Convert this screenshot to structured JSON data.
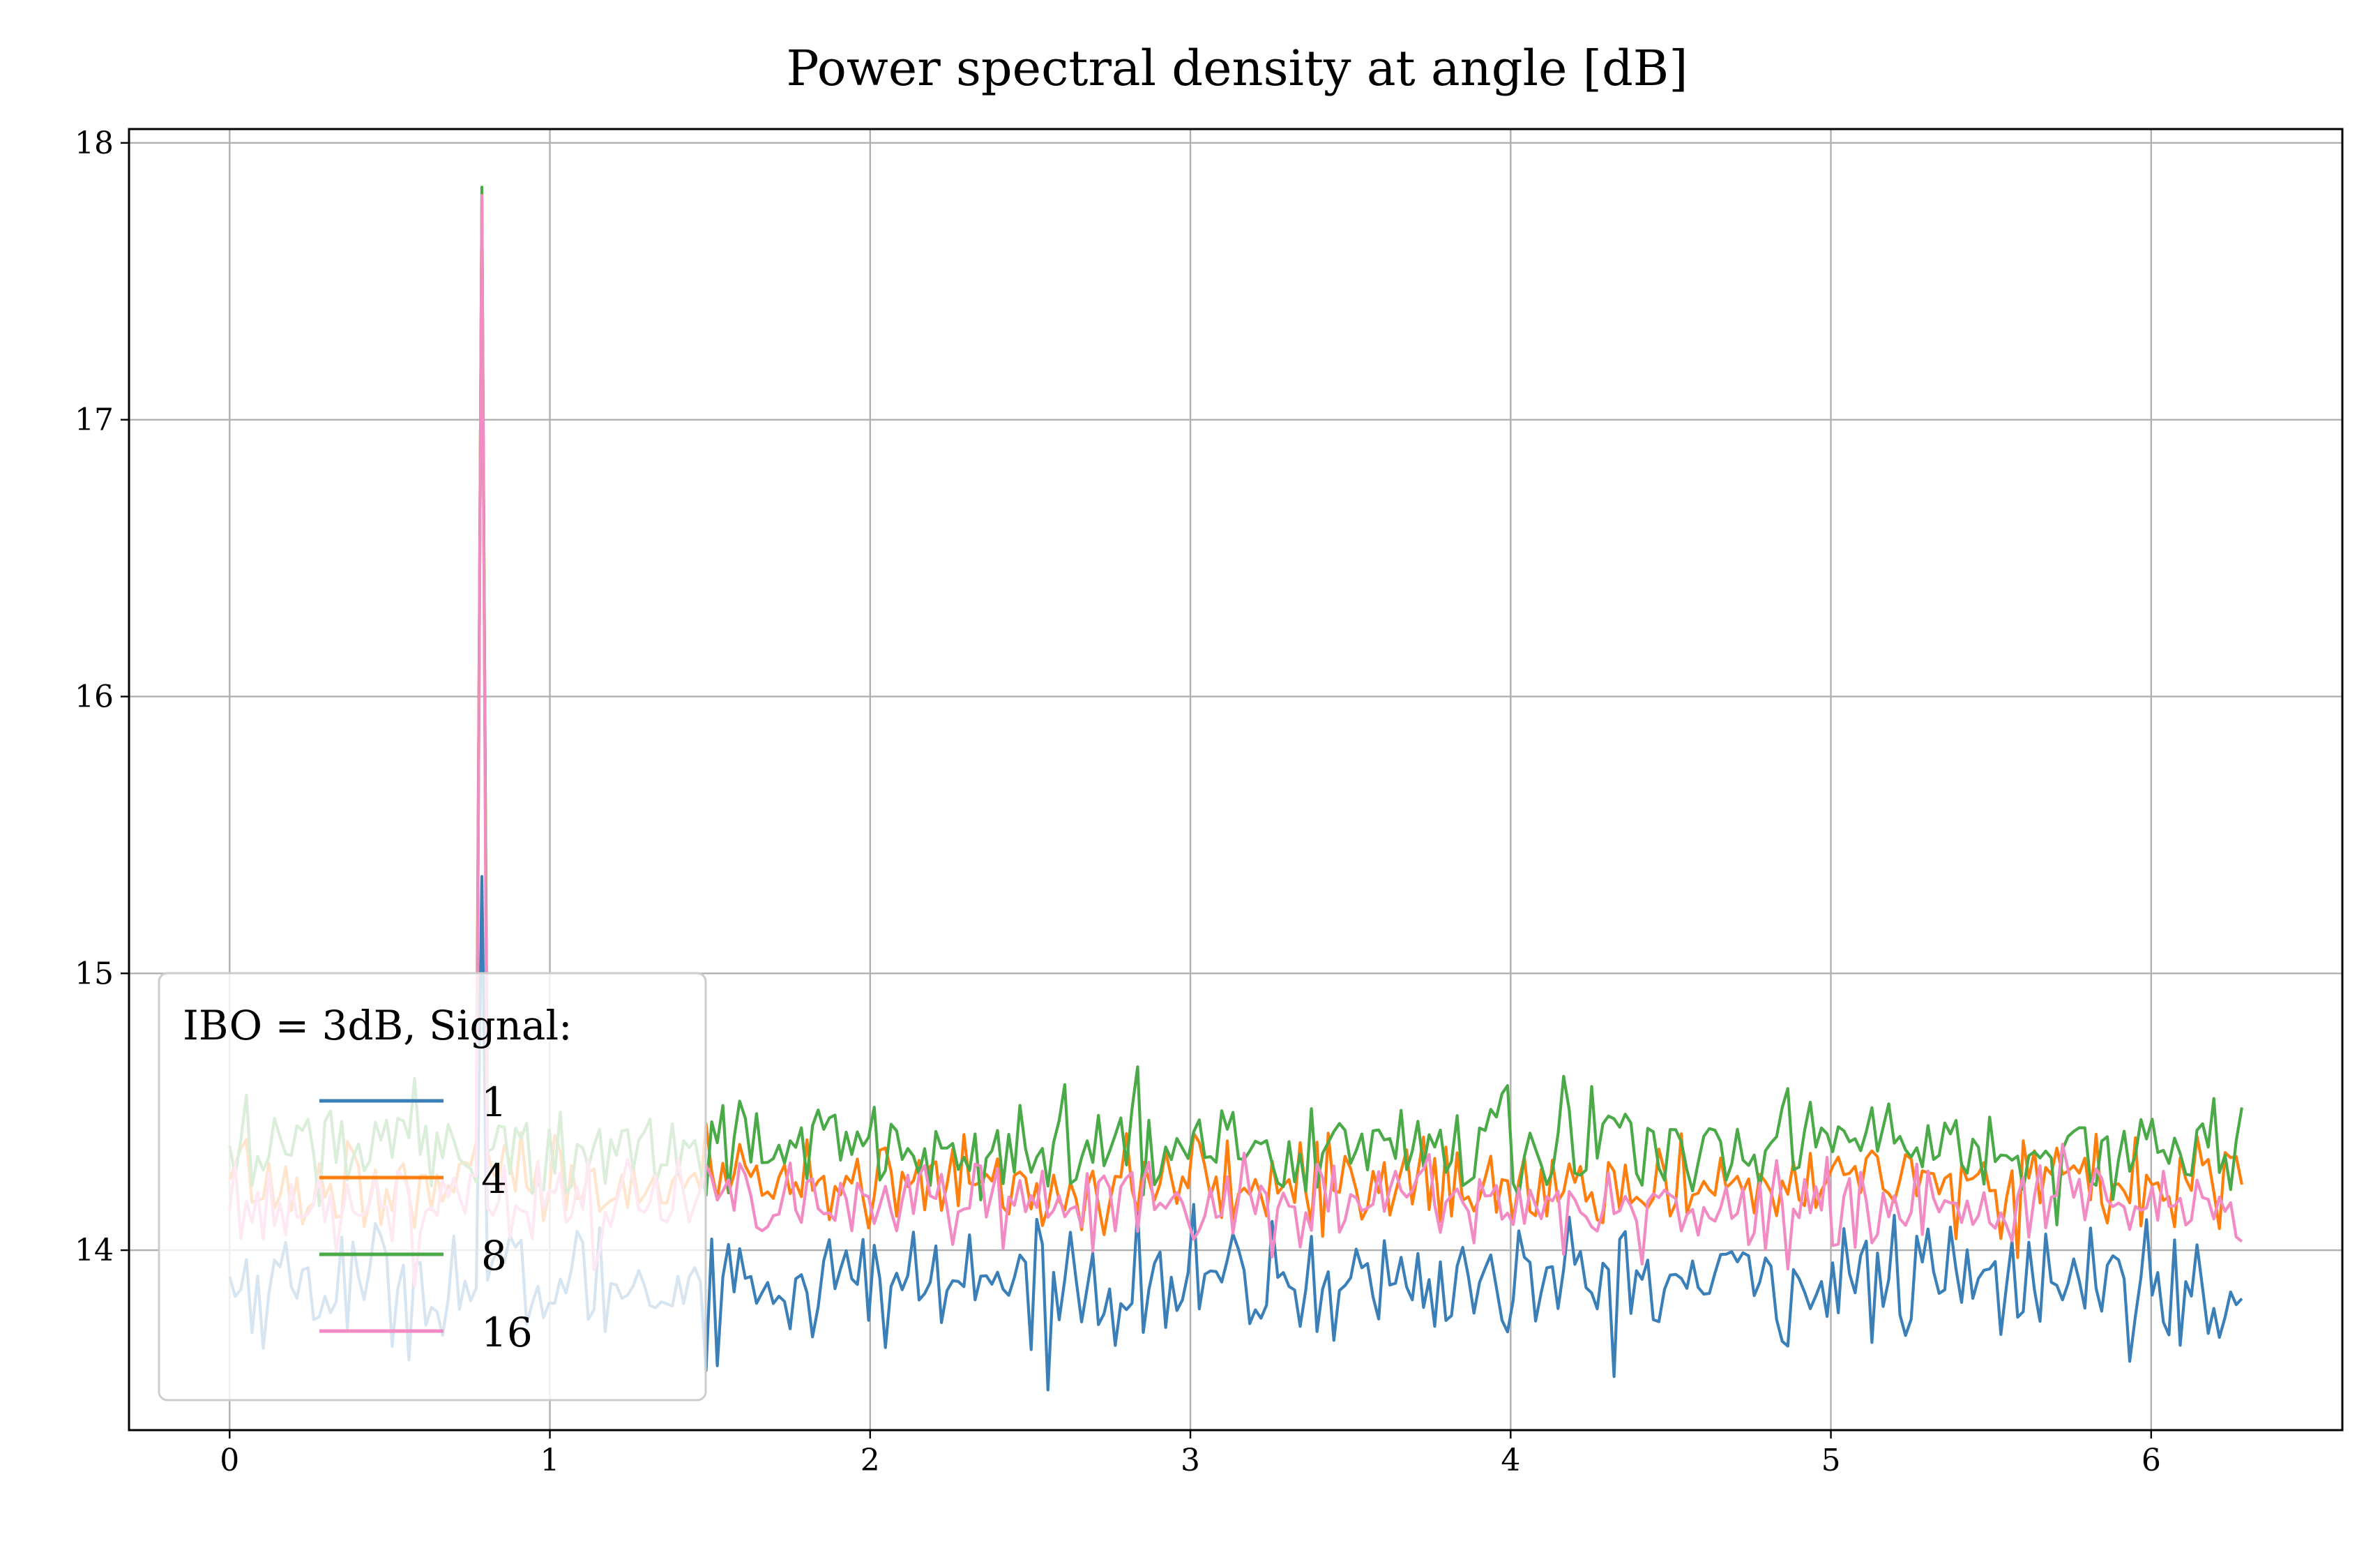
{
  "chart_data": {
    "type": "line",
    "title": "Power spectral density at angle [dB]",
    "xlabel": "",
    "ylabel": "",
    "xlim": [
      -0.3142,
      6.597
    ],
    "ylim": [
      13.35,
      18.05
    ],
    "xticks": [
      0,
      1,
      2,
      3,
      4,
      5,
      6
    ],
    "yticks": [
      14,
      15,
      16,
      17,
      18
    ],
    "grid": true,
    "legend": {
      "title": "IBO = 3dB, Signal:",
      "placement": "lower-left"
    },
    "x_range": [
      0,
      6.2832
    ],
    "n_points": 360,
    "series": [
      {
        "name": "1",
        "color": "#3a7fb8",
        "baseline": 13.88,
        "noise": 0.11,
        "peak": {
          "x": 0.7854,
          "value": 15.35
        }
      },
      {
        "name": "4",
        "color": "#ff7f0e",
        "baseline": 14.24,
        "noise": 0.085,
        "peak": {
          "x": 0.7854,
          "value": 17.8
        }
      },
      {
        "name": "8",
        "color": "#4aaa48",
        "baseline": 14.38,
        "noise": 0.085,
        "peak": {
          "x": 0.7854,
          "value": 17.84
        }
      },
      {
        "name": "16",
        "color": "#f28bc4",
        "baseline": 14.17,
        "noise": 0.085,
        "peak": {
          "x": 0.7854,
          "value": 17.81
        }
      }
    ]
  }
}
